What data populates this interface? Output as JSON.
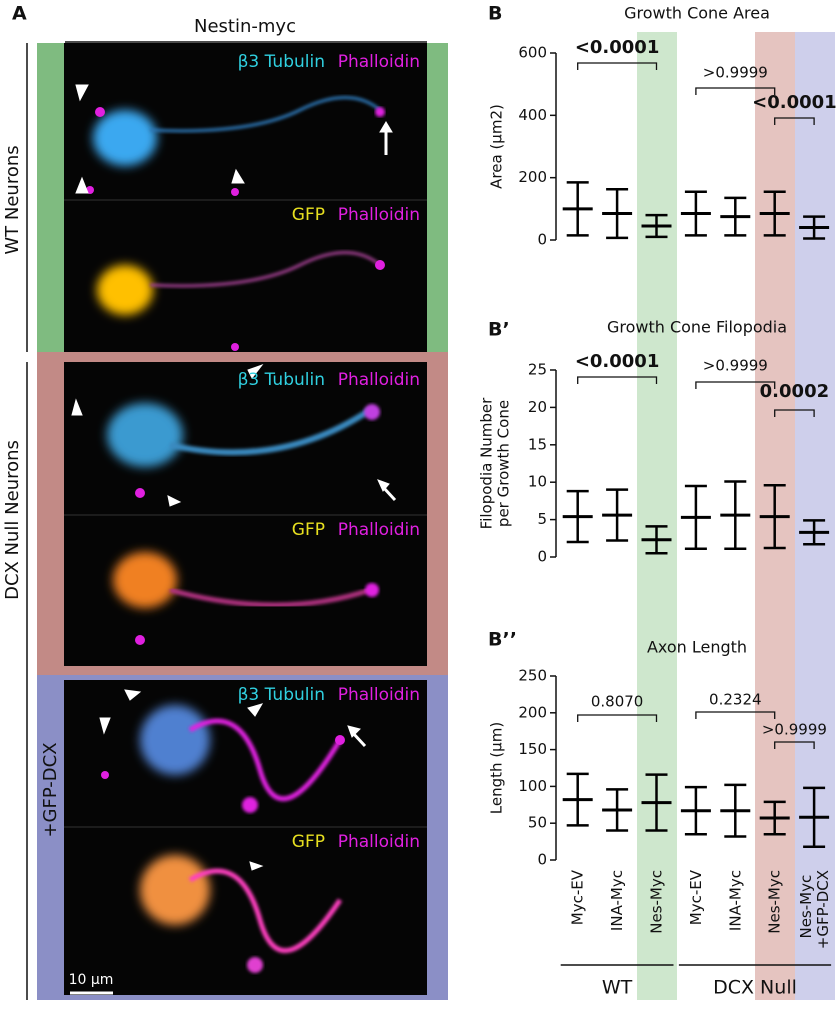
{
  "panel_a": {
    "letter": "A",
    "header": "Nestin-myc",
    "rows": [
      "WT Neurons",
      "DCX Null Neurons"
    ],
    "rescue": "+GFP-DCX",
    "stains": {
      "tubulin": "β3 Tubulin",
      "phalloidin": "Phalloidin",
      "gfp": "GFP"
    },
    "scale_bar": "10 µm"
  },
  "chart_data": [
    {
      "type": "errorbar",
      "panel": "B",
      "title": "Growth Cone Area",
      "ylabel": "Area (µm2)",
      "ylim": [
        0,
        600
      ],
      "yticks": [
        0,
        200,
        400,
        600
      ],
      "means": [
        100,
        85,
        45,
        85,
        75,
        85,
        40
      ],
      "sd": [
        85,
        78,
        35,
        70,
        60,
        70,
        35
      ],
      "annotations": [
        {
          "text": "<0.0001",
          "bold": true
        },
        {
          "text": ">0.9999",
          "bold": false
        },
        {
          "text": "<0.0001",
          "bold": true
        }
      ]
    },
    {
      "type": "errorbar",
      "panel": "B’",
      "title": "Growth Cone Filopodia",
      "ylabel": [
        "Filopodia Number",
        "per Growth Cone"
      ],
      "ylim": [
        0,
        25
      ],
      "yticks": [
        0,
        5,
        10,
        15,
        20,
        25
      ],
      "means": [
        5.4,
        5.6,
        2.3,
        5.3,
        5.6,
        5.4,
        3.3
      ],
      "sd": [
        3.4,
        3.4,
        1.8,
        4.2,
        4.5,
        4.2,
        1.6
      ],
      "annotations": [
        {
          "text": "<0.0001",
          "bold": true
        },
        {
          "text": ">0.9999",
          "bold": false
        },
        {
          "text": "0.0002",
          "bold": true
        }
      ]
    },
    {
      "type": "errorbar",
      "panel": "B’’",
      "title": "Axon Length",
      "ylabel": "Length (µm)",
      "ylim": [
        0,
        250
      ],
      "yticks": [
        0,
        50,
        100,
        150,
        200,
        250
      ],
      "means": [
        82,
        68,
        78,
        67,
        67,
        57,
        58
      ],
      "sd": [
        35,
        28,
        38,
        32,
        35,
        22,
        40
      ],
      "annotations": [
        {
          "text": "0.8070",
          "bold": false
        },
        {
          "text": "0.2324",
          "bold": false
        },
        {
          "text": ">0.9999",
          "bold": false
        }
      ],
      "categories": [
        "Myc-EV",
        "INA-Myc",
        "Nes-Myc",
        "Myc-EV",
        "INA-Myc",
        "Nes-Myc",
        "Nes-Myc +GFP-DCX"
      ],
      "groups": [
        "WT",
        "DCX Null"
      ]
    }
  ]
}
